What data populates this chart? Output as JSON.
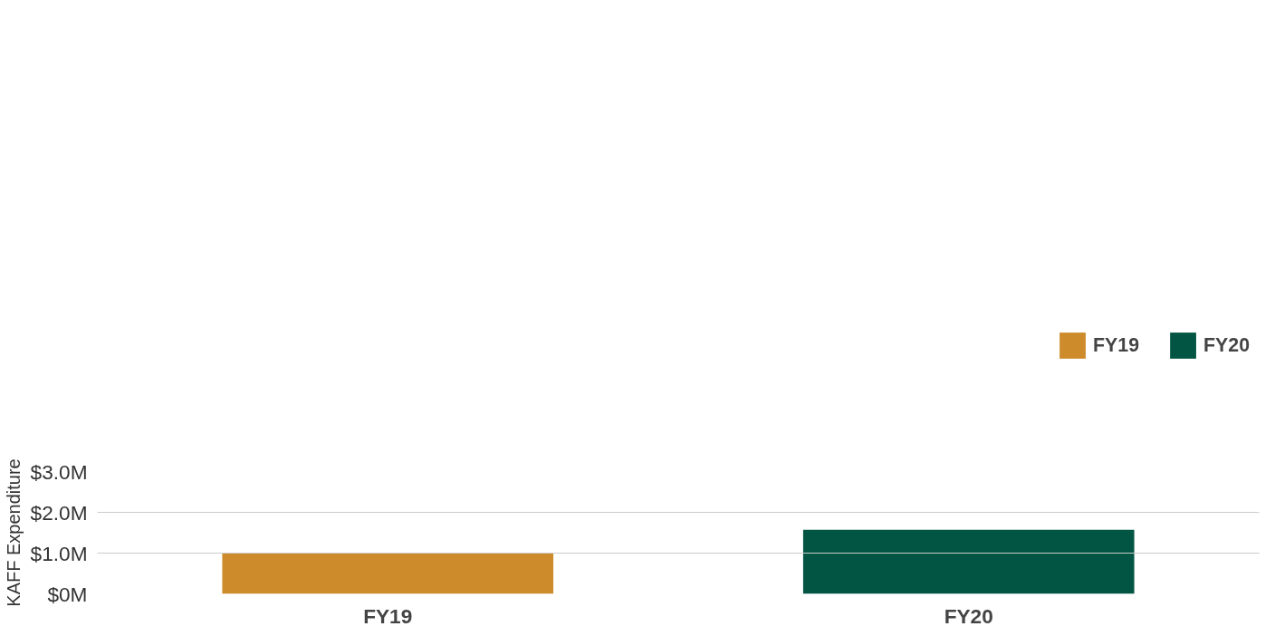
{
  "chart_data": {
    "type": "bar",
    "ylabel": "KAFF Expenditure",
    "categories": [
      "FY19",
      "FY20"
    ],
    "series": [
      {
        "name": "FY19",
        "color": "#cd8b2b",
        "values": [
          1.0,
          null
        ]
      },
      {
        "name": "FY20",
        "color": "#025543",
        "values": [
          null,
          1.57
        ]
      }
    ],
    "ylim": [
      0,
      3.0
    ],
    "yticks": [
      {
        "value": 0,
        "label": "$0M"
      },
      {
        "value": 1,
        "label": "$1.0M"
      },
      {
        "value": 2,
        "label": "$2.0M"
      },
      {
        "value": 3,
        "label": "$3.0M"
      }
    ],
    "grid": "y",
    "legend": "top right"
  }
}
